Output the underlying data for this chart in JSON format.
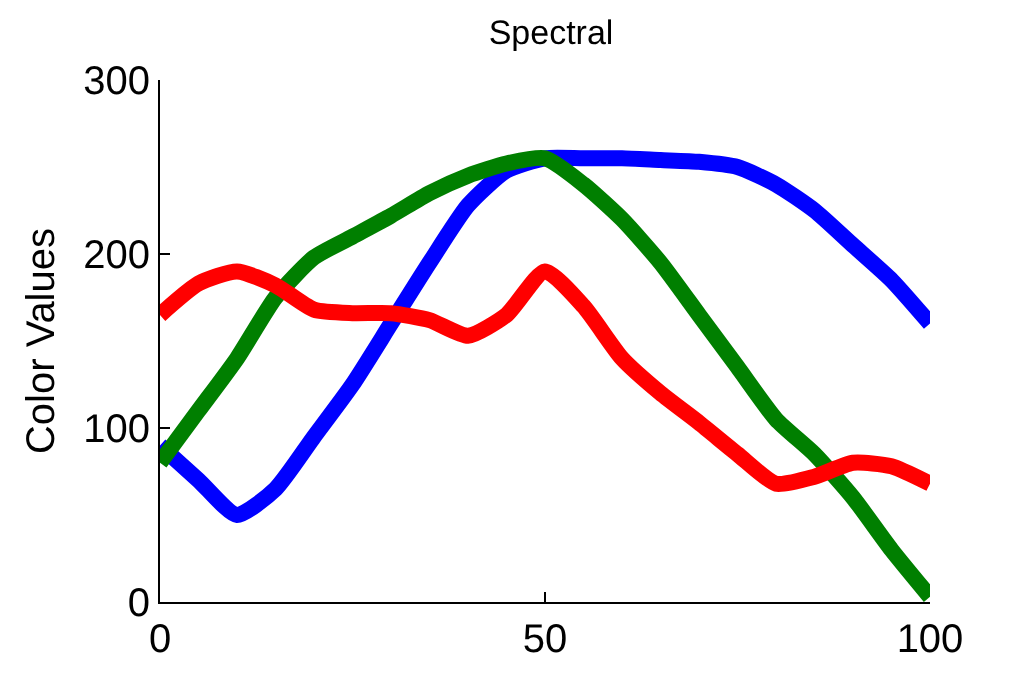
{
  "chart_data": {
    "type": "line",
    "title": "Spectral",
    "ylabel": "Color Values",
    "x": [
      0,
      5,
      10,
      15,
      20,
      25,
      30,
      35,
      40,
      45,
      50,
      55,
      60,
      65,
      70,
      75,
      80,
      85,
      90,
      95,
      100
    ],
    "series": [
      {
        "color": "#0000ff",
        "values": [
          90,
          70,
          50,
          65,
          95,
          125,
          160,
          195,
          228,
          248,
          255,
          255,
          255,
          254,
          253,
          250,
          240,
          225,
          205,
          185,
          160
        ]
      },
      {
        "color": "#007f00",
        "values": [
          80,
          110,
          140,
          175,
          198,
          210,
          222,
          235,
          245,
          252,
          255,
          240,
          220,
          195,
          165,
          135,
          105,
          85,
          60,
          30,
          3
        ]
      },
      {
        "color": "#ff0000",
        "values": [
          165,
          183,
          190,
          182,
          168,
          166,
          166,
          162,
          153,
          165,
          190,
          170,
          140,
          120,
          103,
          85,
          68,
          72,
          80,
          78,
          68
        ]
      }
    ],
    "xlim": [
      0,
      100
    ],
    "xticks": [
      0,
      50,
      100
    ],
    "ylim": [
      0,
      300
    ],
    "yticks": [
      0,
      100,
      200,
      300
    ],
    "marker": "none",
    "line_style": "solid"
  }
}
